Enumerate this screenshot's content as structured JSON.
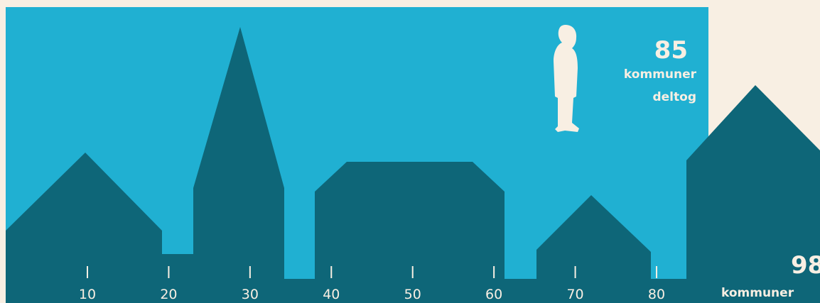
{
  "scale": {
    "ticks": [
      10,
      20,
      30,
      40,
      50,
      60,
      70,
      80
    ]
  },
  "participated": {
    "value": "85",
    "line1": "kommuner",
    "line2": "deltog"
  },
  "total": {
    "value": "98",
    "line1": "kommuner"
  }
}
